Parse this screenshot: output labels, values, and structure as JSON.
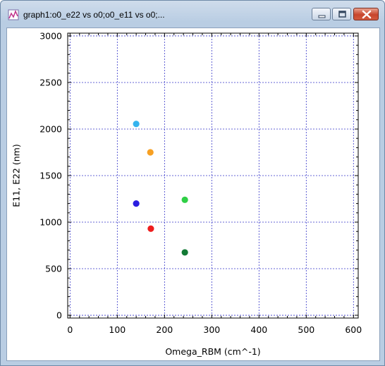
{
  "window": {
    "title": "graph1:o0_e22 vs o0;o0_e11 vs o0;...",
    "app_icon": "graph-icon",
    "minimize_icon": "minimize-icon",
    "maximize_icon": "maximize-icon",
    "close_icon": "close-icon"
  },
  "chart_data": {
    "type": "scatter",
    "title": "",
    "xlabel": "Omega_RBM (cm^-1)",
    "ylabel": "E11, E22 (nm)",
    "xlim": [
      -5,
      610
    ],
    "ylim": [
      -30,
      3030
    ],
    "xticks": [
      0,
      100,
      200,
      300,
      400,
      500,
      600
    ],
    "yticks": [
      0,
      500,
      1000,
      1500,
      2000,
      2500,
      3000
    ],
    "grid": true,
    "points": [
      {
        "x": 140,
        "y": 2055,
        "color": "#35b3ee"
      },
      {
        "x": 170,
        "y": 1750,
        "color": "#f7a023"
      },
      {
        "x": 243,
        "y": 1240,
        "color": "#2fcf45"
      },
      {
        "x": 140,
        "y": 1200,
        "color": "#2a1ee0"
      },
      {
        "x": 171,
        "y": 930,
        "color": "#ee1d1d"
      },
      {
        "x": 243,
        "y": 675,
        "color": "#137a35"
      }
    ]
  }
}
